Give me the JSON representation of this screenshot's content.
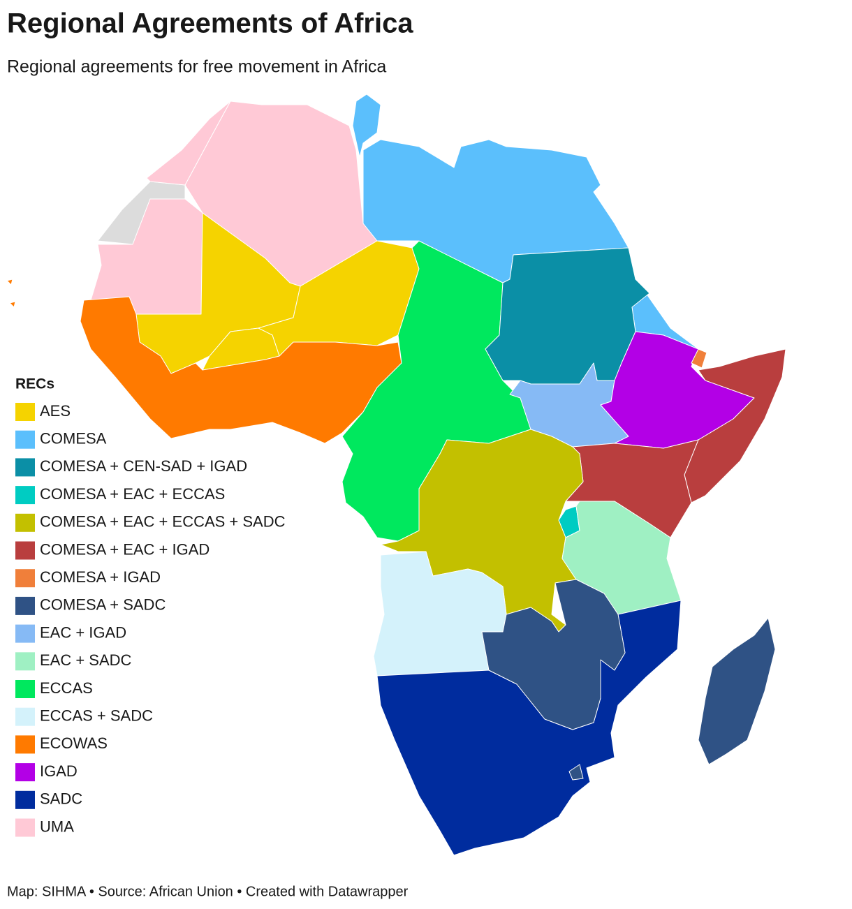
{
  "header": {
    "title": "Regional Agreements of Africa",
    "subtitle": "Regional agreements for free movement in Africa"
  },
  "legend": {
    "title": "RECs",
    "items": [
      {
        "label": "AES",
        "color": "#f5d300"
      },
      {
        "label": "COMESA",
        "color": "#5bbffc"
      },
      {
        "label": "COMESA + CEN-SAD + IGAD",
        "color": "#0b8fa6"
      },
      {
        "label": "COMESA + EAC + ECCAS",
        "color": "#00ccc2"
      },
      {
        "label": "COMESA + EAC + ECCAS + SADC",
        "color": "#c3c000"
      },
      {
        "label": "COMESA + EAC + IGAD",
        "color": "#b93e3e"
      },
      {
        "label": "COMESA + IGAD",
        "color": "#f07f3a"
      },
      {
        "label": "COMESA + SADC",
        "color": "#2f5285"
      },
      {
        "label": "EAC + IGAD",
        "color": "#86baf5"
      },
      {
        "label": "EAC + SADC",
        "color": "#9ff0c3"
      },
      {
        "label": "ECCAS",
        "color": "#00e85e"
      },
      {
        "label": "ECCAS + SADC",
        "color": "#d4f2fb"
      },
      {
        "label": "ECOWAS",
        "color": "#ff7a00"
      },
      {
        "label": "IGAD",
        "color": "#b300e6"
      },
      {
        "label": "SADC",
        "color": "#002c9e"
      },
      {
        "label": "UMA",
        "color": "#ffc9d6"
      }
    ]
  },
  "footer": "Map: SIHMA • Source: African Union • Created with Datawrapper"
}
